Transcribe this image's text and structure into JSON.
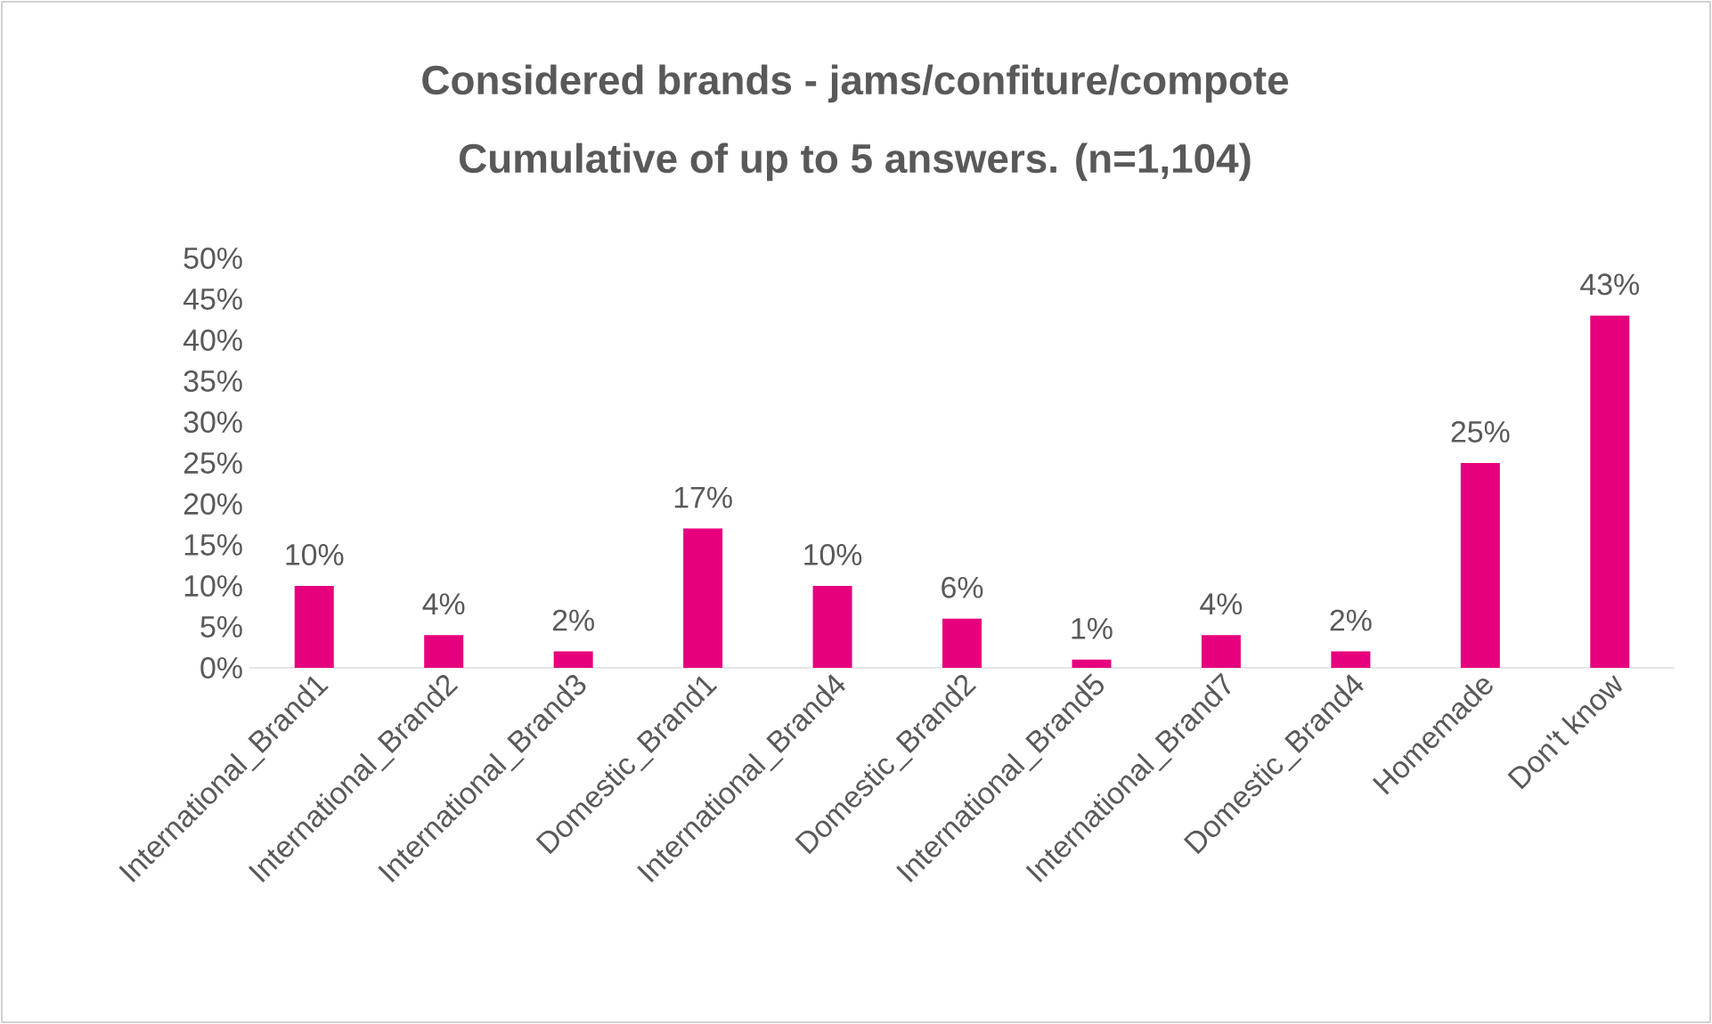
{
  "chart_data": {
    "type": "bar",
    "title": "Considered brands - jams/confiture/compote",
    "subtitle": "Cumulative of up to 5 answers. (n=1,104)",
    "categories": [
      "International_Brand1",
      "International_Brand2",
      "International_Brand3",
      "Domestic_Brand1",
      "International_Brand4",
      "Domestic_Brand2",
      "International_Brand5",
      "International_Brand7",
      "Domestic_Brand4",
      "Homemade",
      "Don't know"
    ],
    "values": [
      10,
      4,
      2,
      17,
      10,
      6,
      1,
      4,
      2,
      25,
      43
    ],
    "value_labels": [
      "10%",
      "4%",
      "2%",
      "17%",
      "10%",
      "6%",
      "1%",
      "4%",
      "2%",
      "25%",
      "43%"
    ],
    "color": "#e6007e",
    "ylim": [
      0,
      50
    ],
    "yticks": [
      {
        "value": 0,
        "label": "0%"
      },
      {
        "value": 5,
        "label": "5%"
      },
      {
        "value": 10,
        "label": "10%"
      },
      {
        "value": 15,
        "label": "15%"
      },
      {
        "value": 20,
        "label": "20%"
      },
      {
        "value": 25,
        "label": "25%"
      },
      {
        "value": 30,
        "label": "30%"
      },
      {
        "value": 35,
        "label": "35%"
      },
      {
        "value": 40,
        "label": "40%"
      },
      {
        "value": 45,
        "label": "45%"
      },
      {
        "value": 50,
        "label": "50%"
      }
    ],
    "grid": false
  }
}
